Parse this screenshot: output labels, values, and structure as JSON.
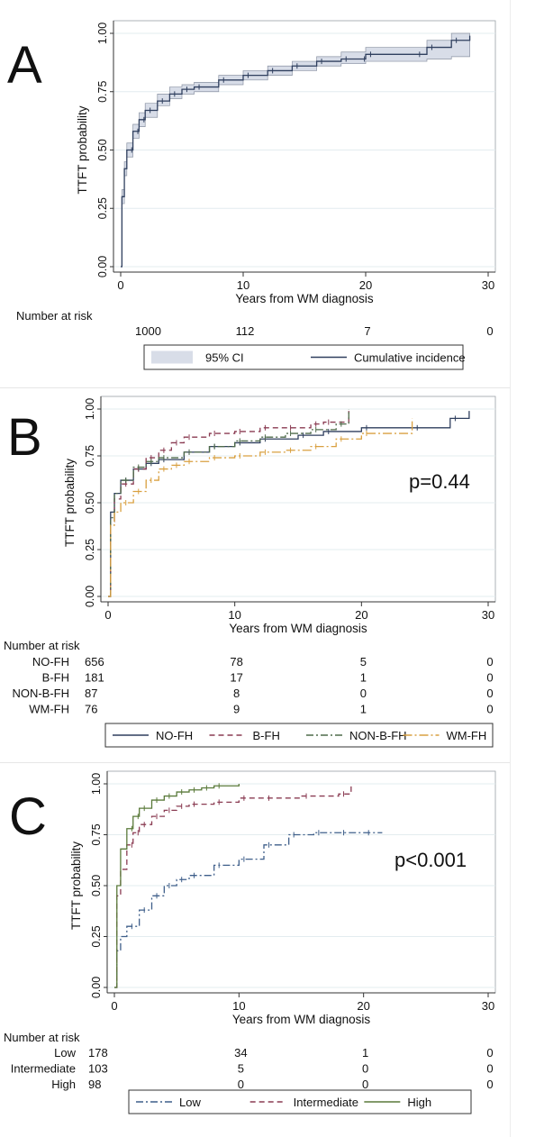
{
  "figure": {
    "panels": [
      {
        "letter": "A",
        "ylabel": "TTFT probability",
        "xlabel": "Years from WM diagnosis",
        "ytick_labels": [
          "0.00",
          "0.25",
          "0.50",
          "0.75",
          "1.00"
        ],
        "xtick_labels": [
          "0",
          "10",
          "20",
          "30"
        ],
        "p_value": "",
        "risk_title": "Number at risk",
        "risk_rows": [
          {
            "label": "",
            "values": [
              "1000",
              "112",
              "7",
              "0"
            ]
          }
        ],
        "legend": [
          "95% CI",
          "Cumulative incidence"
        ]
      },
      {
        "letter": "B",
        "ylabel": "TTFT probability",
        "xlabel": "Years from WM diagnosis",
        "ytick_labels": [
          "0.00",
          "0.25",
          "0.50",
          "0.75",
          "1.00"
        ],
        "xtick_labels": [
          "0",
          "10",
          "20",
          "30"
        ],
        "p_value": "p=0.44",
        "risk_title": "Number at risk",
        "risk_rows": [
          {
            "label": "NO-FH",
            "values": [
              "656",
              "78",
              "5",
              "0"
            ]
          },
          {
            "label": "B-FH",
            "values": [
              "181",
              "17",
              "1",
              "0"
            ]
          },
          {
            "label": "NON-B-FH",
            "values": [
              "87",
              "8",
              "0",
              "0"
            ]
          },
          {
            "label": "WM-FH",
            "values": [
              "76",
              "9",
              "1",
              "0"
            ]
          }
        ],
        "legend": [
          "NO-FH",
          "B-FH",
          "NON-B-FH",
          "WM-FH"
        ]
      },
      {
        "letter": "C",
        "ylabel": "TTFT probability",
        "xlabel": "Years from WM diagnosis",
        "ytick_labels": [
          "0.00",
          "0.25",
          "0.50",
          "0.75",
          "1.00"
        ],
        "xtick_labels": [
          "0",
          "10",
          "20",
          "30"
        ],
        "p_value": "p<0.001",
        "risk_title": "Number at risk",
        "risk_rows": [
          {
            "label": "Low",
            "values": [
              "178",
              "34",
              "1",
              "0"
            ]
          },
          {
            "label": "Intermediate",
            "values": [
              "103",
              "5",
              "0",
              "0"
            ]
          },
          {
            "label": "High",
            "values": [
              "98",
              "0",
              "0",
              "0"
            ]
          }
        ],
        "legend": [
          "Low",
          "Intermediate",
          "High"
        ]
      }
    ]
  },
  "chart_data": [
    {
      "type": "line",
      "panel": "A",
      "ylabel": "TTFT probability",
      "xlabel": "Years from WM diagnosis",
      "xlim": [
        0,
        30
      ],
      "ylim": [
        0,
        1
      ],
      "grid": true,
      "series": [
        {
          "name": "Cumulative incidence",
          "color": "#2f3f5e",
          "style": "solid",
          "x": [
            0,
            0.1,
            0.3,
            0.5,
            1,
            1.5,
            2,
            3,
            4,
            5,
            6,
            8,
            10,
            12,
            14,
            16,
            18,
            19.5,
            20,
            24,
            25,
            27,
            28.5
          ],
          "y": [
            0,
            0.3,
            0.42,
            0.5,
            0.58,
            0.63,
            0.67,
            0.71,
            0.74,
            0.76,
            0.77,
            0.8,
            0.82,
            0.84,
            0.86,
            0.88,
            0.89,
            0.89,
            0.91,
            0.91,
            0.94,
            0.97,
            0.99
          ]
        },
        {
          "name": "95% CI",
          "color": "#d8dde8",
          "style": "band",
          "x": [
            0,
            0.1,
            0.3,
            0.5,
            1,
            1.5,
            2,
            3,
            4,
            5,
            6,
            8,
            10,
            12,
            14,
            16,
            18,
            19.5,
            20,
            24,
            25,
            27,
            28.5
          ],
          "y_low": [
            0,
            0.27,
            0.39,
            0.47,
            0.55,
            0.6,
            0.64,
            0.69,
            0.72,
            0.74,
            0.75,
            0.78,
            0.8,
            0.82,
            0.84,
            0.86,
            0.87,
            0.87,
            0.88,
            0.88,
            0.89,
            0.9,
            0.9
          ],
          "y_high": [
            0,
            0.33,
            0.45,
            0.53,
            0.61,
            0.66,
            0.7,
            0.74,
            0.77,
            0.78,
            0.79,
            0.82,
            0.84,
            0.86,
            0.88,
            0.9,
            0.92,
            0.92,
            0.94,
            0.94,
            0.97,
            1.0,
            1.0
          ]
        }
      ]
    },
    {
      "type": "line",
      "panel": "B",
      "ylabel": "TTFT probability",
      "xlabel": "Years from WM diagnosis",
      "xlim": [
        0,
        30
      ],
      "ylim": [
        0,
        1
      ],
      "grid": true,
      "annotation": "p=0.44",
      "series": [
        {
          "name": "NO-FH",
          "color": "#2f3f5e",
          "style": "solid",
          "x": [
            0,
            0.2,
            0.5,
            1,
            2,
            3,
            4,
            6,
            8,
            10,
            12,
            15,
            17,
            20,
            24,
            27,
            28.5
          ],
          "y": [
            0,
            0.45,
            0.55,
            0.62,
            0.68,
            0.71,
            0.73,
            0.77,
            0.8,
            0.82,
            0.84,
            0.86,
            0.88,
            0.9,
            0.9,
            0.95,
            0.99
          ]
        },
        {
          "name": "B-FH",
          "color": "#8a3b52",
          "style": "dash",
          "x": [
            0,
            0.2,
            0.5,
            1,
            2,
            3,
            4,
            5,
            6,
            8,
            10,
            12,
            14,
            16,
            17,
            19
          ],
          "y": [
            0,
            0.4,
            0.52,
            0.6,
            0.68,
            0.74,
            0.78,
            0.82,
            0.85,
            0.87,
            0.88,
            0.9,
            0.9,
            0.92,
            0.93,
            0.99
          ]
        },
        {
          "name": "NON-B-FH",
          "color": "#4f6b4a",
          "style": "dashdot",
          "x": [
            0,
            0.2,
            0.5,
            1,
            2,
            3,
            4,
            6,
            8,
            10,
            12,
            14,
            16,
            18,
            19
          ],
          "y": [
            0,
            0.42,
            0.55,
            0.62,
            0.69,
            0.72,
            0.74,
            0.77,
            0.8,
            0.83,
            0.85,
            0.87,
            0.89,
            0.92,
            1.0
          ]
        },
        {
          "name": "WM-FH",
          "color": "#d9a040",
          "style": "dashdotlong",
          "x": [
            0,
            0.2,
            0.5,
            1,
            2,
            3,
            4,
            5,
            6,
            8,
            10,
            12,
            14,
            16,
            18,
            20,
            24
          ],
          "y": [
            0,
            0.38,
            0.45,
            0.5,
            0.56,
            0.62,
            0.68,
            0.7,
            0.72,
            0.74,
            0.75,
            0.77,
            0.78,
            0.8,
            0.84,
            0.87,
            0.95
          ]
        }
      ]
    },
    {
      "type": "line",
      "panel": "C",
      "ylabel": "TTFT probability",
      "xlabel": "Years from WM diagnosis",
      "xlim": [
        0,
        30
      ],
      "ylim": [
        0,
        1
      ],
      "grid": true,
      "annotation": "p<0.001",
      "series": [
        {
          "name": "Low",
          "color": "#3f5f8a",
          "style": "dashdot",
          "x": [
            0,
            0.2,
            0.5,
            1,
            2,
            3,
            4,
            5,
            6,
            8,
            10,
            12,
            14,
            16,
            18,
            20,
            21.5
          ],
          "y": [
            0,
            0.18,
            0.25,
            0.3,
            0.38,
            0.45,
            0.5,
            0.53,
            0.55,
            0.6,
            0.63,
            0.7,
            0.75,
            0.76,
            0.76,
            0.76,
            0.76
          ]
        },
        {
          "name": "Intermediate",
          "color": "#8a3b52",
          "style": "dash",
          "x": [
            0,
            0.2,
            0.5,
            1,
            1.5,
            2,
            3,
            4,
            5,
            6,
            8,
            10,
            12,
            15,
            18,
            19
          ],
          "y": [
            0,
            0.45,
            0.58,
            0.7,
            0.76,
            0.8,
            0.84,
            0.87,
            0.89,
            0.9,
            0.91,
            0.93,
            0.93,
            0.94,
            0.95,
            1.0
          ]
        },
        {
          "name": "High",
          "color": "#5a7a3a",
          "style": "solid",
          "x": [
            0,
            0.2,
            0.5,
            1,
            1.5,
            2,
            3,
            4,
            5,
            6,
            7,
            8,
            10
          ],
          "y": [
            0,
            0.5,
            0.68,
            0.78,
            0.84,
            0.88,
            0.92,
            0.94,
            0.96,
            0.97,
            0.98,
            0.99,
            1.0
          ]
        }
      ]
    }
  ]
}
